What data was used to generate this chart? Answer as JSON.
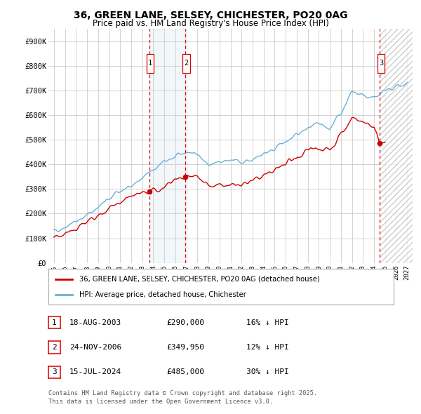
{
  "title": "36, GREEN LANE, SELSEY, CHICHESTER, PO20 0AG",
  "subtitle": "Price paid vs. HM Land Registry's House Price Index (HPI)",
  "hpi_label": "HPI: Average price, detached house, Chichester",
  "property_label": "36, GREEN LANE, SELSEY, CHICHESTER, PO20 0AG (detached house)",
  "footnote1": "Contains HM Land Registry data © Crown copyright and database right 2025.",
  "footnote2": "This data is licensed under the Open Government Licence v3.0.",
  "ylim": [
    0,
    950000
  ],
  "yticks": [
    0,
    100000,
    200000,
    300000,
    400000,
    500000,
    600000,
    700000,
    800000,
    900000
  ],
  "ytick_labels": [
    "£0",
    "£100K",
    "£200K",
    "£300K",
    "£400K",
    "£500K",
    "£600K",
    "£700K",
    "£800K",
    "£900K"
  ],
  "xlim_start": 1994.5,
  "xlim_end": 2027.5,
  "xticks": [
    1995,
    1996,
    1997,
    1998,
    1999,
    2000,
    2001,
    2002,
    2003,
    2004,
    2005,
    2006,
    2007,
    2008,
    2009,
    2010,
    2011,
    2012,
    2013,
    2014,
    2015,
    2016,
    2017,
    2018,
    2019,
    2020,
    2021,
    2022,
    2023,
    2024,
    2025,
    2026,
    2027
  ],
  "hpi_color": "#6ab0d8",
  "property_color": "#cc0000",
  "sale1_date": 2003.63,
  "sale1_label": "18-AUG-2003",
  "sale1_price": "£290,000",
  "sale1_hpi": "16% ↓ HPI",
  "sale2_date": 2006.9,
  "sale2_label": "24-NOV-2006",
  "sale2_price": "£349,950",
  "sale2_hpi": "12% ↓ HPI",
  "sale3_date": 2024.54,
  "sale3_label": "15-JUL-2024",
  "sale3_price": "£485,000",
  "sale3_hpi": "30% ↓ HPI",
  "sale1_value": 290000,
  "sale2_value": 349950,
  "sale3_value": 485000,
  "bg_color": "#ffffff",
  "grid_color": "#cccccc"
}
